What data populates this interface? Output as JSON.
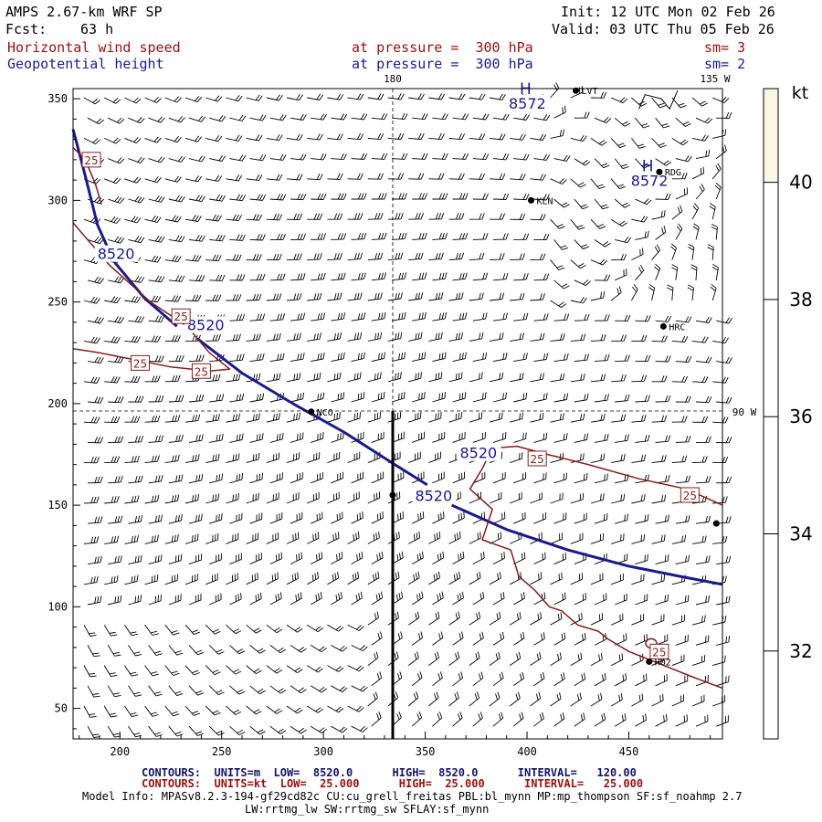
{
  "header": {
    "model": "AMPS 2.67-km WRF SP",
    "fcst_label": "Fcst:",
    "fcst_value": "63 h",
    "init": "Init: 12 UTC Mon 02 Feb 26",
    "valid": "Valid: 03 UTC Thu 05 Feb 26",
    "field1_name": "Horizontal wind speed",
    "field1_level": "at pressure =  300 hPa",
    "field1_sm": "sm= 3",
    "field2_name": "Geopotential height",
    "field2_level": "at pressure =  300 hPa",
    "field2_sm": "sm= 2"
  },
  "map": {
    "x_ticks": [
      200,
      250,
      300,
      350,
      400,
      450
    ],
    "y_ticks": [
      50,
      100,
      150,
      200,
      250,
      300,
      350
    ],
    "x_range": [
      177,
      496
    ],
    "y_range": [
      35,
      355
    ],
    "lon_label_top": "180",
    "lon_label_right_top": "135 W",
    "lon_label_right": "90 W",
    "stations": [
      {
        "name": "LVT",
        "x": 424,
        "y": 354
      },
      {
        "name": "RDG",
        "x": 465,
        "y": 314
      },
      {
        "name": "KLN",
        "x": 402,
        "y": 300
      },
      {
        "name": "HRC",
        "x": 467,
        "y": 238
      },
      {
        "name": "NCO",
        "x": 294,
        "y": 196
      },
      {
        "name": "",
        "x": 334,
        "y": 155
      },
      {
        "name": "",
        "x": 493,
        "y": 141
      },
      {
        "name": "H02",
        "x": 460,
        "y": 73
      }
    ],
    "height_labels": [
      {
        "text": "8572",
        "x": 391,
        "y": 346,
        "h": true
      },
      {
        "text": "8572",
        "x": 451,
        "y": 308,
        "h": true
      },
      {
        "text": "8520",
        "x": 189,
        "y": 272
      },
      {
        "text": "8520",
        "x": 233,
        "y": 237
      },
      {
        "text": "8520",
        "x": 367,
        "y": 174
      },
      {
        "text": "8520",
        "x": 345,
        "y": 153
      }
    ],
    "speed_labels": [
      {
        "text": "25",
        "x": 186,
        "y": 320
      },
      {
        "text": "25",
        "x": 230,
        "y": 243
      },
      {
        "text": "25",
        "x": 210,
        "y": 220
      },
      {
        "text": "25",
        "x": 240,
        "y": 216
      },
      {
        "text": "25",
        "x": 405,
        "y": 173
      },
      {
        "text": "25",
        "x": 480,
        "y": 155
      },
      {
        "text": "25",
        "x": 465,
        "y": 78
      }
    ]
  },
  "colorbar": {
    "unit": "kt",
    "ticks": [
      32,
      34,
      36,
      38,
      40
    ]
  },
  "footer": {
    "contour1": "CONTOURS:  UNITS=m  LOW=  8520.0      HIGH=  8520.0      INTERVAL=   120.00",
    "contour2": "CONTOURS:  UNITS=kt  LOW=  25.000      HIGH=  25.000      INTERVAL=   25.000",
    "model_info": "Model Info: MPASv8.2.3-194-gf29cd82c CU:cu_grell_freitas PBL:bl_mynn MP:mp_thompson SF:sf_noahmp 2.7",
    "model_info2": "LW:rrtmg_lw SW:rrtmg_sw SFLAY:sf_mynn"
  },
  "colors": {
    "wind_contour": "#8b1a1a",
    "height_contour": "#1a1a90",
    "barb": "#000000",
    "colorbar_fill": "#fbf7e4"
  }
}
